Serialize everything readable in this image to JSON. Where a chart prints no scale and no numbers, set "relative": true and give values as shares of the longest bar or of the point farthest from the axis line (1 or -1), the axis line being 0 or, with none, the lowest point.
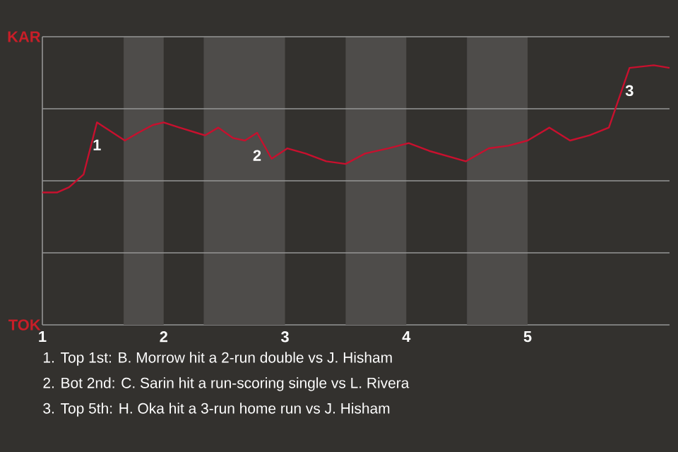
{
  "chart_data": {
    "type": "line",
    "x": [
      1,
      1.12,
      1.22,
      1.34,
      1.45,
      1.68,
      1.79,
      1.91,
      2,
      2.13,
      2.27,
      2.34,
      2.45,
      2.57,
      2.67,
      2.77,
      2.89,
      3.02,
      3.17,
      3.34,
      3.5,
      3.66,
      3.85,
      4.02,
      4.19,
      4.49,
      4.68,
      4.84,
      5,
      5.18,
      5.35,
      5.51,
      5.67,
      5.84,
      6.04,
      6.17
    ],
    "values": [
      0.51,
      0.51,
      0.53,
      0.58,
      0.78,
      0.71,
      0.74,
      0.77,
      0.78,
      0.76,
      0.74,
      0.73,
      0.76,
      0.72,
      0.71,
      0.74,
      0.64,
      0.68,
      0.66,
      0.63,
      0.62,
      0.66,
      0.68,
      0.7,
      0.67,
      0.63,
      0.68,
      0.69,
      0.71,
      0.76,
      0.71,
      0.73,
      0.76,
      0.99,
      1,
      0.99
    ],
    "relative": true,
    "color": "#c8102e",
    "xlim": [
      1,
      6.17
    ],
    "xticks": [
      1,
      2,
      3,
      4,
      5
    ],
    "grid": "y",
    "bands": [
      {
        "axis": "x",
        "from": 1.67,
        "to": 2,
        "color": "#4e4c4a"
      },
      {
        "axis": "x",
        "from": 2.33,
        "to": 3,
        "color": "#4e4c4a"
      },
      {
        "axis": "x",
        "from": 3.5,
        "to": 4,
        "color": "#4e4c4a"
      },
      {
        "axis": "x",
        "from": 4.5,
        "to": 5,
        "color": "#4e4c4a"
      }
    ],
    "annotations": [
      "KAR",
      "TOK",
      {
        "text": "1",
        "x": 1.45,
        "y": 0.78
      },
      {
        "text": "2",
        "x": 2.77,
        "y": 0.74
      },
      {
        "text": "3",
        "x": 5.84,
        "y": 0.99
      },
      "1. Top 1st: B. Morrow hit a 2-run double vs J. Hisham",
      "2. Bot 2nd: C. Sarin hit a run-scoring single vs L. Rivera",
      "3. Top 5th: H. Oka hit a 3-run home run vs J. Hisham"
    ]
  }
}
